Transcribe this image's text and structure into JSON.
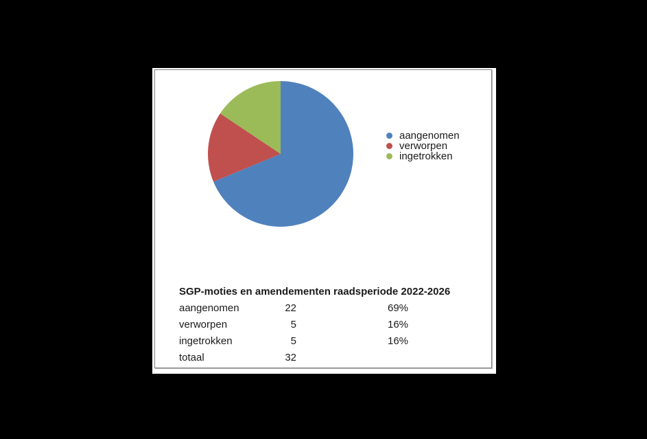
{
  "page": {
    "background": "#000000",
    "panel_background": "#ffffff",
    "frame_border_color": "#7f7f7f",
    "text_color": "#1a1a1a"
  },
  "chart_data": {
    "type": "pie",
    "title": "SGP-moties en amendementen raadsperiode 2022-2026",
    "categories": [
      "aangenomen",
      "verworpen",
      "ingetrokken"
    ],
    "values": [
      22,
      5,
      5
    ],
    "total": 32,
    "percent_labels": [
      "69%",
      "16%",
      "16%"
    ],
    "colors": [
      "#4f81bd",
      "#c0504d",
      "#9bbb59"
    ],
    "start_angle_deg": 0,
    "direction": "clockwise",
    "legend_position": "right",
    "grid": "off"
  },
  "legend": {
    "items": [
      "aangenomen",
      "verworpen",
      "ingetrokken"
    ]
  },
  "table": {
    "title": "SGP-moties en amendementen raadsperiode 2022-2026",
    "rows": [
      {
        "label": "aangenomen",
        "count": "22",
        "percent": "69%"
      },
      {
        "label": "verworpen",
        "count": "5",
        "percent": "16%"
      },
      {
        "label": "ingetrokken",
        "count": "5",
        "percent": "16%"
      },
      {
        "label": "totaal",
        "count": "32",
        "percent": ""
      }
    ]
  }
}
